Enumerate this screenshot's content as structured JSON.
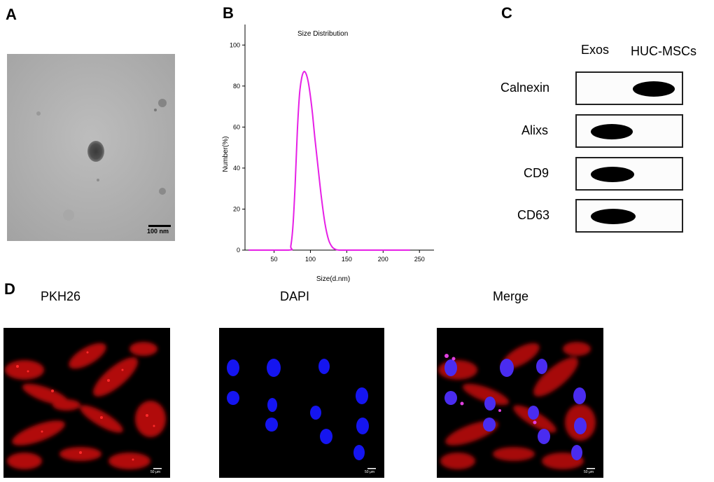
{
  "panels": {
    "a": {
      "letter": "A",
      "scale_bar": "100 nm"
    },
    "b": {
      "letter": "B"
    },
    "c": {
      "letter": "C",
      "columns": [
        "Exos",
        "HUC-MSCs"
      ],
      "rows": [
        {
          "label": "Calnexin",
          "band_in": "HUC-MSCs"
        },
        {
          "label": "Alixs",
          "band_in": "Exos"
        },
        {
          "label": "CD9",
          "band_in": "Exos"
        },
        {
          "label": "CD63",
          "band_in": "Exos"
        }
      ]
    },
    "d": {
      "letter": "D",
      "images": [
        {
          "title": "PKH26",
          "scale": "50 μm"
        },
        {
          "title": "DAPI",
          "scale": "50 μm"
        },
        {
          "title": "Merge",
          "scale": "50 μm"
        }
      ]
    }
  },
  "chart_data": {
    "type": "line",
    "title": "Size Distribution",
    "xlabel": "Size(d.nm)",
    "ylabel": "Number(%)",
    "xlim": [
      10,
      270
    ],
    "ylim": [
      0,
      110
    ],
    "xticks": [
      50,
      100,
      150,
      200,
      250
    ],
    "yticks": [
      0,
      20,
      40,
      60,
      80,
      100
    ],
    "line_color": "#e620e6",
    "series": [
      {
        "x": [
          15,
          70,
          73,
          76,
          79,
          82,
          85,
          88,
          91,
          94,
          97,
          100,
          103,
          106,
          110,
          115,
          120,
          125,
          130,
          135,
          140,
          150,
          237
        ],
        "values": [
          0,
          0,
          2,
          12,
          32,
          58,
          76,
          84,
          87,
          86,
          82,
          75,
          66,
          55,
          42,
          26,
          13,
          5,
          1.5,
          0.3,
          0,
          0,
          0
        ]
      }
    ]
  }
}
